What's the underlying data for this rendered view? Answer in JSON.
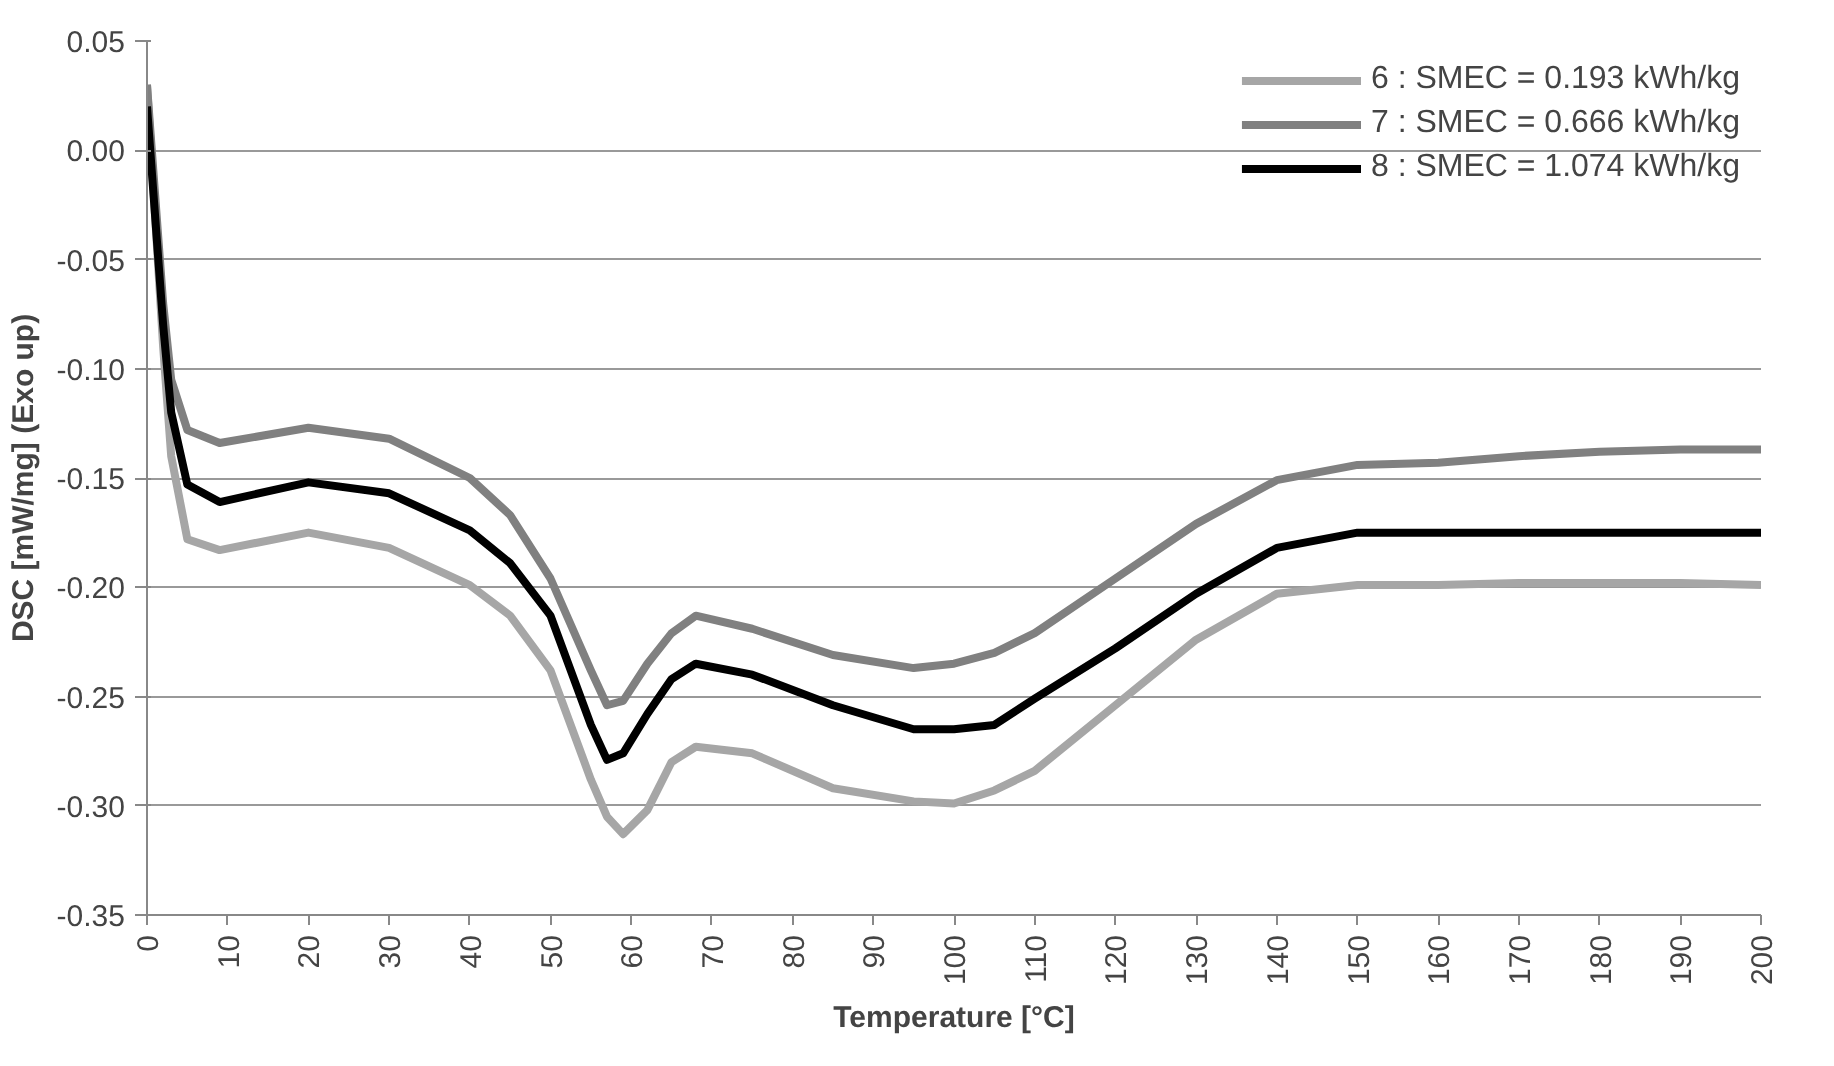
{
  "chart_data": {
    "type": "line",
    "xlabel": "Temperature [°C]",
    "ylabel": "DSC [mW/mg] (Exo up)",
    "x": [
      0,
      1,
      2,
      3,
      5,
      9,
      20,
      30,
      40,
      45,
      50,
      55,
      57,
      59,
      62,
      65,
      68,
      75,
      85,
      95,
      100,
      105,
      110,
      120,
      130,
      140,
      150,
      160,
      170,
      180,
      190,
      200
    ],
    "series": [
      {
        "name": "6 : SMEC = 0.193 kWh/kg",
        "color": "#a6a6a6",
        "values": [
          0.03,
          -0.03,
          -0.09,
          -0.14,
          -0.178,
          -0.183,
          -0.175,
          -0.182,
          -0.199,
          -0.213,
          -0.238,
          -0.288,
          -0.305,
          -0.313,
          -0.302,
          -0.28,
          -0.273,
          -0.276,
          -0.292,
          -0.298,
          -0.299,
          -0.293,
          -0.284,
          -0.254,
          -0.224,
          -0.203,
          -0.199,
          -0.199,
          -0.198,
          -0.198,
          -0.198,
          -0.199
        ]
      },
      {
        "name": "7 : SMEC = 0.666 kWh/kg",
        "color": "#808080",
        "values": [
          0.03,
          -0.02,
          -0.07,
          -0.105,
          -0.128,
          -0.134,
          -0.127,
          -0.132,
          -0.15,
          -0.167,
          -0.196,
          -0.238,
          -0.254,
          -0.252,
          -0.235,
          -0.221,
          -0.213,
          -0.219,
          -0.231,
          -0.237,
          -0.235,
          -0.23,
          -0.221,
          -0.196,
          -0.171,
          -0.151,
          -0.144,
          -0.143,
          -0.14,
          -0.138,
          -0.137,
          -0.137
        ]
      },
      {
        "name": "8 : SMEC = 1.074 kWh/kg",
        "color": "#000000",
        "values": [
          0.02,
          -0.03,
          -0.08,
          -0.12,
          -0.153,
          -0.161,
          -0.152,
          -0.157,
          -0.174,
          -0.189,
          -0.213,
          -0.263,
          -0.279,
          -0.276,
          -0.258,
          -0.242,
          -0.235,
          -0.24,
          -0.254,
          -0.265,
          -0.265,
          -0.263,
          -0.251,
          -0.228,
          -0.203,
          -0.182,
          -0.175,
          -0.175,
          -0.175,
          -0.175,
          -0.175,
          -0.175
        ]
      }
    ],
    "xlim": [
      0,
      200
    ],
    "xticks": [
      0,
      10,
      20,
      30,
      40,
      50,
      60,
      70,
      80,
      90,
      100,
      110,
      120,
      130,
      140,
      150,
      160,
      170,
      180,
      190,
      200
    ],
    "ylim": [
      -0.35,
      0.05
    ],
    "yticks": [
      {
        "value": -0.35,
        "label": "-0.35"
      },
      {
        "value": -0.3,
        "label": "-0.30"
      },
      {
        "value": -0.25,
        "label": "-0.25"
      },
      {
        "value": -0.2,
        "label": "-0.20"
      },
      {
        "value": -0.15,
        "label": "-0.15"
      },
      {
        "value": -0.1,
        "label": "-0.10"
      },
      {
        "value": -0.05,
        "label": "-0.05"
      },
      {
        "value": 0,
        "label": "0.00"
      },
      {
        "value": 0.05,
        "label": "0.05"
      }
    ],
    "grid": "y",
    "legend": "top right",
    "line_style": "solid"
  }
}
